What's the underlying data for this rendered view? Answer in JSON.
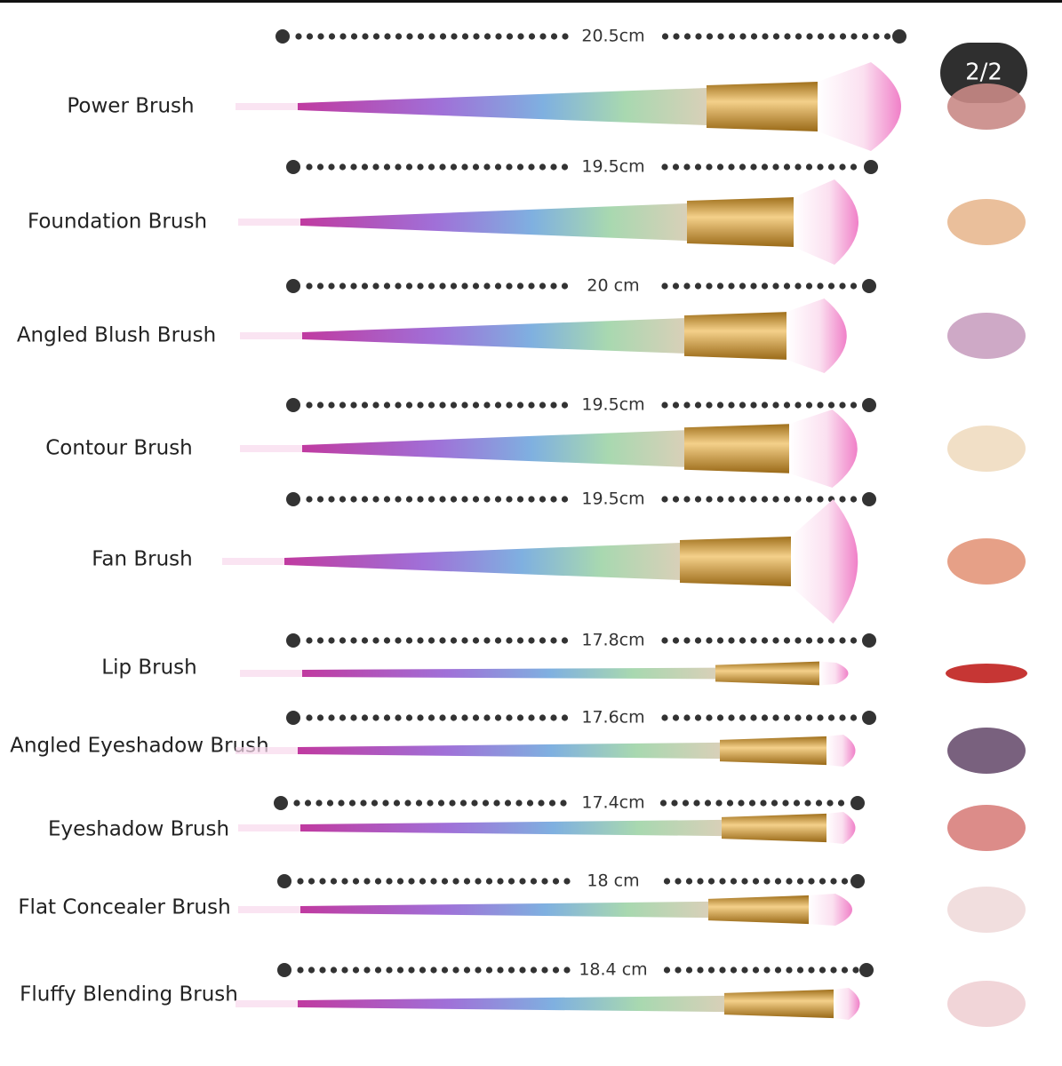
{
  "badge": "2/2",
  "brushes": [
    {
      "name": "Power Brush",
      "length": "20.5cm"
    },
    {
      "name": "Foundation Brush",
      "length": "19.5cm"
    },
    {
      "name": "Angled Blush Brush",
      "length": "20 cm"
    },
    {
      "name": "Contour Brush",
      "length": "19.5cm"
    },
    {
      "name": "Fan Brush",
      "length": "19.5cm"
    },
    {
      "name": "Lip Brush",
      "length": "17.8cm"
    },
    {
      "name": "Angled Eyeshadow Brush",
      "length": "17.6cm"
    },
    {
      "name": "Eyeshadow Brush",
      "length": "17.4cm"
    },
    {
      "name": "Flat Concealer Brush",
      "length": "18 cm"
    },
    {
      "name": "Fluffy Blending Brush",
      "length": "18.4 cm"
    }
  ]
}
